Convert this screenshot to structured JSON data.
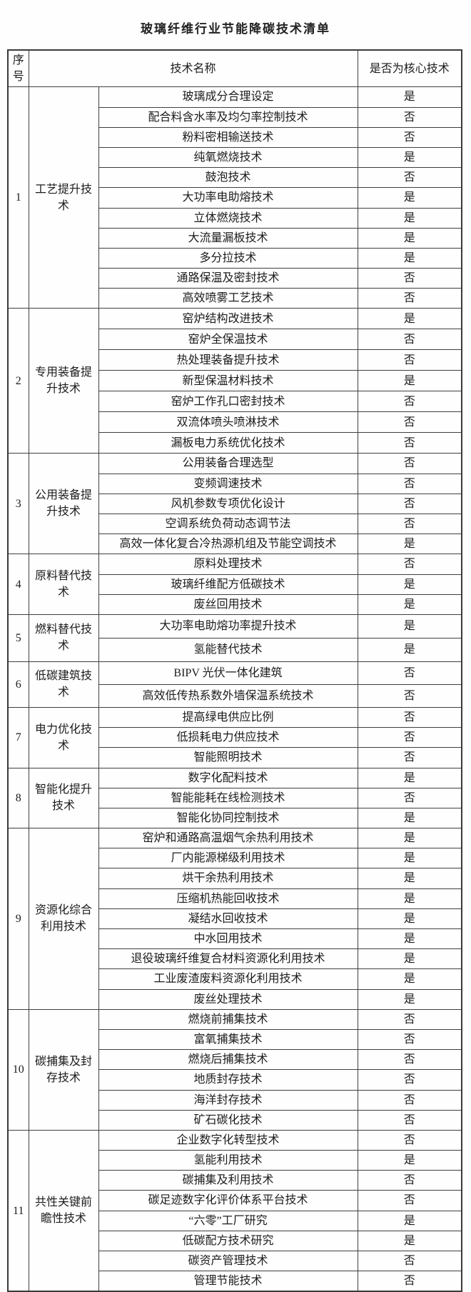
{
  "page": {
    "title": "玻璃纤维行业节能降碳技术清单",
    "background_color": "#ffffff",
    "text_color": "#1c1c1c",
    "border_color": "#3f3f3f"
  },
  "table": {
    "headers": {
      "index": "序号",
      "name": "技术名称",
      "core": "是否为核心技术"
    },
    "yes_label": "是",
    "no_label": "否",
    "groups": [
      {
        "index": "1",
        "category": "工艺提升技术",
        "rows": [
          {
            "name": "玻璃成分合理设定",
            "core": "是"
          },
          {
            "name": "配合料含水率及均匀率控制技术",
            "core": "否"
          },
          {
            "name": "粉料密相输送技术",
            "core": "否"
          },
          {
            "name": "纯氧燃烧技术",
            "core": "是"
          },
          {
            "name": "鼓泡技术",
            "core": "否"
          },
          {
            "name": "大功率电助熔技术",
            "core": "是"
          },
          {
            "name": "立体燃烧技术",
            "core": "是"
          },
          {
            "name": "大流量漏板技术",
            "core": "是"
          },
          {
            "name": "多分拉技术",
            "core": "是"
          },
          {
            "name": "通路保温及密封技术",
            "core": "否"
          },
          {
            "name": "高效喷雾工艺技术",
            "core": "否"
          }
        ]
      },
      {
        "index": "2",
        "category": "专用装备提升技术",
        "rows": [
          {
            "name": "窑炉结构改进技术",
            "core": "是"
          },
          {
            "name": "窑炉全保温技术",
            "core": "否"
          },
          {
            "name": "热处理装备提升技术",
            "core": "否"
          },
          {
            "name": "新型保温材料技术",
            "core": "是"
          },
          {
            "name": "窑炉工作孔口密封技术",
            "core": "否"
          },
          {
            "name": "双流体喷头喷淋技术",
            "core": "否"
          },
          {
            "name": "漏板电力系统优化技术",
            "core": "否"
          }
        ]
      },
      {
        "index": "3",
        "category": "公用装备提升技术",
        "rows": [
          {
            "name": "公用装备合理选型",
            "core": "否"
          },
          {
            "name": "变频调速技术",
            "core": "否"
          },
          {
            "name": "风机参数专项优化设计",
            "core": "否"
          },
          {
            "name": "空调系统负荷动态调节法",
            "core": "否"
          },
          {
            "name": "高效一体化复合冷热源机组及节能空调技术",
            "core": "是"
          }
        ]
      },
      {
        "index": "4",
        "category": "原料替代技术",
        "rows": [
          {
            "name": "原料处理技术",
            "core": "否"
          },
          {
            "name": "玻璃纤维配方低碳技术",
            "core": "是"
          },
          {
            "name": "废丝回用技术",
            "core": "是"
          }
        ]
      },
      {
        "index": "5",
        "category": "燃料替代技术",
        "rows": [
          {
            "name": "大功率电助熔功率提升技术",
            "core": "是"
          },
          {
            "name": "氢能替代技术",
            "core": "是"
          }
        ]
      },
      {
        "index": "6",
        "category": "低碳建筑技术",
        "rows": [
          {
            "name": "BIPV 光伏一体化建筑",
            "core": "否"
          },
          {
            "name": "高效低传热系数外墙保温系统技术",
            "core": "否"
          }
        ]
      },
      {
        "index": "7",
        "category": "电力优化技术",
        "rows": [
          {
            "name": "提高绿电供应比例",
            "core": "否"
          },
          {
            "name": "低损耗电力供应技术",
            "core": "否"
          },
          {
            "name": "智能照明技术",
            "core": "否"
          }
        ]
      },
      {
        "index": "8",
        "category": "智能化提升技术",
        "rows": [
          {
            "name": "数字化配料技术",
            "core": "是"
          },
          {
            "name": "智能能耗在线检测技术",
            "core": "否"
          },
          {
            "name": "智能化协同控制技术",
            "core": "是"
          }
        ]
      },
      {
        "index": "9",
        "category": "资源化综合利用技术",
        "rows": [
          {
            "name": "窑炉和通路高温烟气余热利用技术",
            "core": "是"
          },
          {
            "name": "厂内能源梯级利用技术",
            "core": "是"
          },
          {
            "name": "烘干余热利用技术",
            "core": "是"
          },
          {
            "name": "压缩机热能回收技术",
            "core": "是"
          },
          {
            "name": "凝结水回收技术",
            "core": "是"
          },
          {
            "name": "中水回用技术",
            "core": "是"
          },
          {
            "name": "退役玻璃纤维复合材料资源化利用技术",
            "core": "是"
          },
          {
            "name": "工业废渣废料资源化利用技术",
            "core": "是"
          },
          {
            "name": "废丝处理技术",
            "core": "是"
          }
        ]
      },
      {
        "index": "10",
        "category": "碳捕集及封存技术",
        "rows": [
          {
            "name": "燃烧前捕集技术",
            "core": "否"
          },
          {
            "name": "富氧捕集技术",
            "core": "否"
          },
          {
            "name": "燃烧后捕集技术",
            "core": "否"
          },
          {
            "name": "地质封存技术",
            "core": "否"
          },
          {
            "name": "海洋封存技术",
            "core": "否"
          },
          {
            "name": "矿石碳化技术",
            "core": "否"
          }
        ]
      },
      {
        "index": "11",
        "category": "共性关键前瞻性技术",
        "rows": [
          {
            "name": "企业数字化转型技术",
            "core": "否"
          },
          {
            "name": "氢能利用技术",
            "core": "是"
          },
          {
            "name": "碳捕集及利用技术",
            "core": "否"
          },
          {
            "name": "碳足迹数字化评价体系平台技术",
            "core": "否"
          },
          {
            "name": "“六零”工厂研究",
            "core": "是"
          },
          {
            "name": "低碳配方技术研究",
            "core": "是"
          },
          {
            "name": "碳资产管理技术",
            "core": "否"
          },
          {
            "name": "管理节能技术",
            "core": "否"
          }
        ]
      }
    ]
  }
}
